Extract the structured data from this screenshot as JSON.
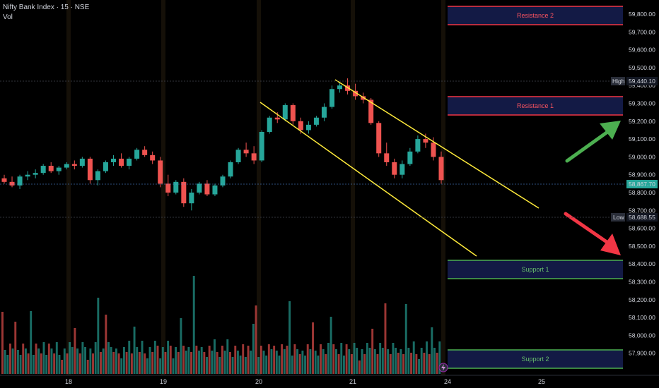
{
  "header": {
    "title": "Nifty Bank Index · 15 · NSE",
    "volume_label": "Vol"
  },
  "price_axis": {
    "ticks": [
      "59,800.00",
      "59,700.00",
      "59,600.00",
      "59,500.00",
      "59,400.00",
      "59,300.00",
      "59,200.00",
      "59,100.00",
      "59,000.00",
      "58,900.00",
      "58,800.00",
      "58,700.00",
      "58,600.00",
      "58,500.00",
      "58,400.00",
      "58,300.00",
      "58,200.00",
      "58,100.00",
      "58,000.00",
      "57,900.00"
    ],
    "current_price": "58,867.70",
    "high_label": "High",
    "high_value": "59,440.10",
    "low_label": "Low",
    "low_value": "58,688.55"
  },
  "time_axis": {
    "labels": [
      "18",
      "19",
      "20",
      "21",
      "24",
      "25"
    ]
  },
  "zones": [
    {
      "label": "Resistance 2",
      "color": "#f23645",
      "text_color": "#f7525f",
      "fill": "#131a45"
    },
    {
      "label": "Resistance 1",
      "color": "#f23645",
      "text_color": "#f7525f",
      "fill": "#131a45"
    },
    {
      "label": "Support 1",
      "color": "#4caf50",
      "text_color": "#66bb6a",
      "fill": "#131a45"
    },
    {
      "label": "Support 2",
      "color": "#4caf50",
      "text_color": "#66bb6a",
      "fill": "#131a45"
    }
  ],
  "colors": {
    "up": "#26a69a",
    "down": "#ef5350",
    "channel": "#ffeb3b",
    "arrow_up": "#4caf50",
    "arrow_down": "#f23645"
  },
  "icons": {
    "replay": "lightning-icon"
  },
  "chart_data": {
    "type": "candlestick",
    "candles": [
      [
        58880,
        58900,
        58850,
        58860
      ],
      [
        58860,
        58890,
        58830,
        58840
      ],
      [
        58840,
        58900,
        58820,
        58890
      ],
      [
        58890,
        58920,
        58870,
        58900
      ],
      [
        58900,
        58930,
        58880,
        58910
      ],
      [
        58910,
        58960,
        58900,
        58950
      ],
      [
        58950,
        58970,
        58910,
        58920
      ],
      [
        58920,
        58950,
        58900,
        58940
      ],
      [
        58940,
        58970,
        58930,
        58960
      ],
      [
        58960,
        58980,
        58930,
        58950
      ],
      [
        58950,
        59000,
        58940,
        58990
      ],
      [
        58990,
        59000,
        58850,
        58870
      ],
      [
        58870,
        58930,
        58840,
        58920
      ],
      [
        58920,
        58980,
        58910,
        58970
      ],
      [
        58970,
        59010,
        58950,
        58990
      ],
      [
        58990,
        59020,
        58940,
        58950
      ],
      [
        58950,
        59000,
        58930,
        58990
      ],
      [
        58990,
        59050,
        58980,
        59040
      ],
      [
        59040,
        59060,
        59000,
        59010
      ],
      [
        59010,
        59030,
        58960,
        58980
      ],
      [
        58980,
        59000,
        58830,
        58850
      ],
      [
        58850,
        58900,
        58780,
        58800
      ],
      [
        58800,
        58870,
        58790,
        58860
      ],
      [
        58860,
        58880,
        58720,
        58740
      ],
      [
        58740,
        58820,
        58700,
        58800
      ],
      [
        58800,
        58860,
        58790,
        58850
      ],
      [
        58850,
        58870,
        58780,
        58790
      ],
      [
        58790,
        58850,
        58780,
        58840
      ],
      [
        58840,
        58900,
        58830,
        58890
      ],
      [
        58890,
        58980,
        58880,
        58970
      ],
      [
        58970,
        59050,
        58960,
        59040
      ],
      [
        59040,
        59080,
        59000,
        59020
      ],
      [
        59020,
        59060,
        58960,
        58980
      ],
      [
        58980,
        59150,
        58970,
        59140
      ],
      [
        59140,
        59230,
        59130,
        59220
      ],
      [
        59220,
        59250,
        59190,
        59210
      ],
      [
        59210,
        59300,
        59200,
        59290
      ],
      [
        59290,
        59300,
        59180,
        59200
      ],
      [
        59200,
        59220,
        59130,
        59150
      ],
      [
        59150,
        59200,
        59130,
        59180
      ],
      [
        59180,
        59230,
        59170,
        59220
      ],
      [
        59220,
        59300,
        59200,
        59280
      ],
      [
        59280,
        59400,
        59270,
        59380
      ],
      [
        59380,
        59420,
        59360,
        59400
      ],
      [
        59400,
        59440,
        59350,
        59370
      ],
      [
        59370,
        59410,
        59320,
        59340
      ],
      [
        59340,
        59360,
        59300,
        59320
      ],
      [
        59320,
        59330,
        59180,
        59190
      ],
      [
        59190,
        59200,
        59000,
        59020
      ],
      [
        59020,
        59080,
        58950,
        58970
      ],
      [
        58970,
        58990,
        58880,
        58900
      ],
      [
        58900,
        58980,
        58880,
        58960
      ],
      [
        58960,
        59050,
        58950,
        59030
      ],
      [
        59030,
        59120,
        59020,
        59100
      ],
      [
        59100,
        59130,
        59050,
        59080
      ],
      [
        59080,
        59110,
        58980,
        59000
      ],
      [
        59000,
        59030,
        58850,
        58870
      ]
    ]
  }
}
